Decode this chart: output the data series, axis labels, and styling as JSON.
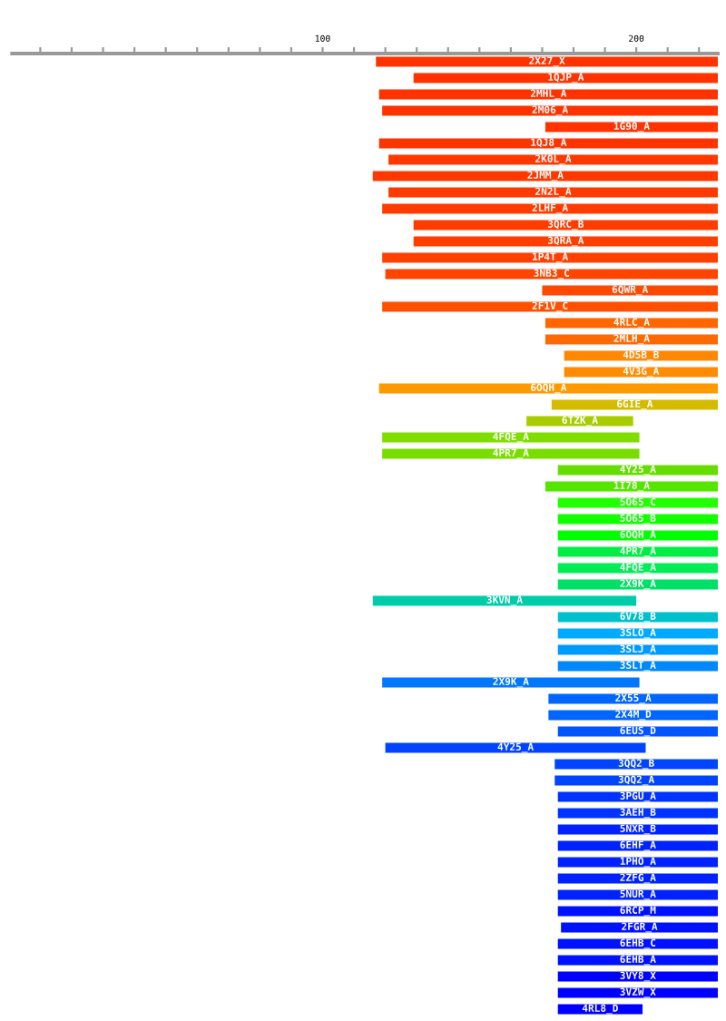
{
  "chart_data": {
    "type": "bar",
    "orientation": "horizontal",
    "categories": [
      "2X27_X",
      "1QJP_A",
      "2MHL_A",
      "2M06_A",
      "1G90_A",
      "1QJ8_A",
      "2K0L_A",
      "2JMM_A",
      "2N2L_A",
      "2LHF_A",
      "3QRC_B",
      "3QRA_A",
      "1P4T_A",
      "3NB3_C",
      "6QWR_A",
      "2F1V_C",
      "4RLC_A",
      "2MLH_A",
      "4D5B_B",
      "4V3G_A",
      "6OQH_A",
      "6GIE_A",
      "6TZK_A",
      "4FQE_A",
      "4PR7_A",
      "4Y25_A",
      "1I78_A",
      "5O65_C",
      "5O65_B",
      "6OQH_A",
      "4PR7_A",
      "4FQE_A",
      "2X9K_A",
      "3KVN_A",
      "6V78_B",
      "3SLO_A",
      "3SLJ_A",
      "3SLT_A",
      "2X9K_A",
      "2X55_A",
      "2X4M_D",
      "6EUS_D",
      "4Y25_A",
      "3QQ2_B",
      "3QQ2_A",
      "3PGU_A",
      "3AEH_B",
      "5NXR_B",
      "6EHF_A",
      "1PHO_A",
      "2ZFG_A",
      "5NUR_A",
      "6RCP_M",
      "2FGR_A",
      "6EHB_C",
      "6EHB_A",
      "3VY8_X",
      "3VZW_X",
      "4RL8_D"
    ],
    "base": [
      117,
      129,
      118,
      119,
      171,
      118,
      121,
      116,
      121,
      119,
      129,
      129,
      119,
      120,
      170,
      119,
      171,
      171,
      177,
      177,
      118,
      173,
      165,
      119,
      119,
      175,
      171,
      175,
      175,
      175,
      175,
      175,
      175,
      116,
      175,
      175,
      175,
      175,
      119,
      172,
      172,
      175,
      120,
      174,
      174,
      175,
      175,
      175,
      175,
      175,
      175,
      175,
      175,
      176,
      175,
      175,
      175,
      175,
      175
    ],
    "values": [
      109,
      97,
      108,
      107,
      55,
      108,
      105,
      110,
      105,
      107,
      97,
      97,
      107,
      106,
      56,
      107,
      55,
      55,
      49,
      49,
      108,
      53,
      34,
      82,
      82,
      51,
      55,
      51,
      51,
      51,
      51,
      51,
      51,
      84,
      51,
      51,
      51,
      51,
      82,
      54,
      54,
      51,
      83,
      52,
      52,
      51,
      51,
      51,
      51,
      51,
      51,
      51,
      51,
      50,
      51,
      51,
      51,
      51,
      27
    ],
    "colors": [
      "#ff3300",
      "#ff3300",
      "#ff3300",
      "#ff3300",
      "#ff3300",
      "#ff3300",
      "#ff3800",
      "#ff3800",
      "#ff3a00",
      "#ff3c00",
      "#ff3c00",
      "#ff3e00",
      "#ff4000",
      "#ff4400",
      "#ff4800",
      "#ff5000",
      "#ff6600",
      "#ff6a00",
      "#ff8800",
      "#ff8c00",
      "#ff9900",
      "#d4bb00",
      "#a8cc00",
      "#80dd00",
      "#7add00",
      "#66dd00",
      "#55e600",
      "#22ff00",
      "#11ff00",
      "#00ff00",
      "#00ee44",
      "#00ee55",
      "#00e066",
      "#00ccaa",
      "#00c0cc",
      "#00aaff",
      "#0099ff",
      "#0088ff",
      "#0077ff",
      "#0066ff",
      "#0066ff",
      "#0055ff",
      "#0044ff",
      "#0044ff",
      "#0044ff",
      "#0033ff",
      "#0033ff",
      "#0022ff",
      "#0022ff",
      "#0022ff",
      "#0022ff",
      "#0022ff",
      "#0011ff",
      "#0011ff",
      "#0011ff",
      "#0011ff",
      "#0000ff",
      "#0000ff",
      "#0000ff"
    ],
    "xlim": [
      1,
      226
    ],
    "xticks": [
      {
        "value": 10,
        "label": null
      },
      {
        "value": 20,
        "label": null
      },
      {
        "value": 30,
        "label": null
      },
      {
        "value": 40,
        "label": null
      },
      {
        "value": 50,
        "label": null
      },
      {
        "value": 60,
        "label": null
      },
      {
        "value": 70,
        "label": null
      },
      {
        "value": 80,
        "label": null
      },
      {
        "value": 90,
        "label": null
      },
      100,
      {
        "value": 110,
        "label": null
      },
      {
        "value": 120,
        "label": null
      },
      {
        "value": 130,
        "label": null
      },
      {
        "value": 140,
        "label": null
      },
      {
        "value": 150,
        "label": null
      },
      {
        "value": 160,
        "label": null
      },
      {
        "value": 170,
        "label": null
      },
      {
        "value": 180,
        "label": null
      },
      {
        "value": 190,
        "label": null
      },
      200,
      {
        "value": 210,
        "label": null
      },
      {
        "value": 220,
        "label": null
      }
    ]
  }
}
